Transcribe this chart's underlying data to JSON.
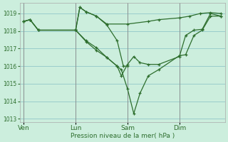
{
  "background_color": "#cceedd",
  "grid_color": "#99cccc",
  "line_color": "#2d6e2d",
  "xlabel": "Pression niveau de la mer( hPa )",
  "ylim": [
    1012.8,
    1019.6
  ],
  "yticks": [
    1013,
    1014,
    1015,
    1016,
    1017,
    1018,
    1019
  ],
  "xtick_labels": [
    "Ven",
    "Lun",
    "Sam",
    "Dim"
  ],
  "xtick_positions": [
    0,
    25,
    50,
    75
  ],
  "xlim": [
    -2,
    97
  ],
  "lines": [
    {
      "x": [
        0,
        3,
        7,
        25,
        27,
        30,
        35,
        40,
        50,
        60,
        65,
        75,
        80,
        85,
        90,
        95
      ],
      "y": [
        1018.55,
        1018.65,
        1018.05,
        1018.05,
        1019.35,
        1019.1,
        1018.85,
        1018.4,
        1018.4,
        1018.55,
        1018.65,
        1018.75,
        1018.85,
        1019.0,
        1019.05,
        1019.0
      ]
    },
    {
      "x": [
        0,
        3,
        7,
        25,
        27,
        30,
        35,
        40,
        45,
        48,
        50
      ],
      "y": [
        1018.55,
        1018.65,
        1018.05,
        1018.05,
        1019.35,
        1019.1,
        1018.85,
        1018.35,
        1017.45,
        1016.0,
        1016.0
      ]
    },
    {
      "x": [
        0,
        3,
        7,
        25,
        30,
        35,
        40,
        45,
        47,
        50,
        53,
        56,
        60,
        65,
        75,
        78,
        82,
        86,
        90,
        95
      ],
      "y": [
        1018.55,
        1018.65,
        1018.05,
        1018.05,
        1017.45,
        1017.05,
        1016.5,
        1016.0,
        1015.8,
        1014.7,
        1013.3,
        1014.45,
        1015.45,
        1015.8,
        1016.6,
        1016.65,
        1017.75,
        1018.05,
        1018.85,
        1018.85
      ]
    },
    {
      "x": [
        25,
        30,
        35,
        40,
        45,
        47,
        50,
        53,
        56,
        60,
        65,
        75,
        78,
        82,
        86,
        90,
        95
      ],
      "y": [
        1018.05,
        1017.4,
        1016.9,
        1016.5,
        1016.0,
        1015.45,
        1016.1,
        1016.55,
        1016.2,
        1016.1,
        1016.1,
        1016.55,
        1017.75,
        1018.05,
        1018.1,
        1019.0,
        1018.85
      ]
    }
  ]
}
